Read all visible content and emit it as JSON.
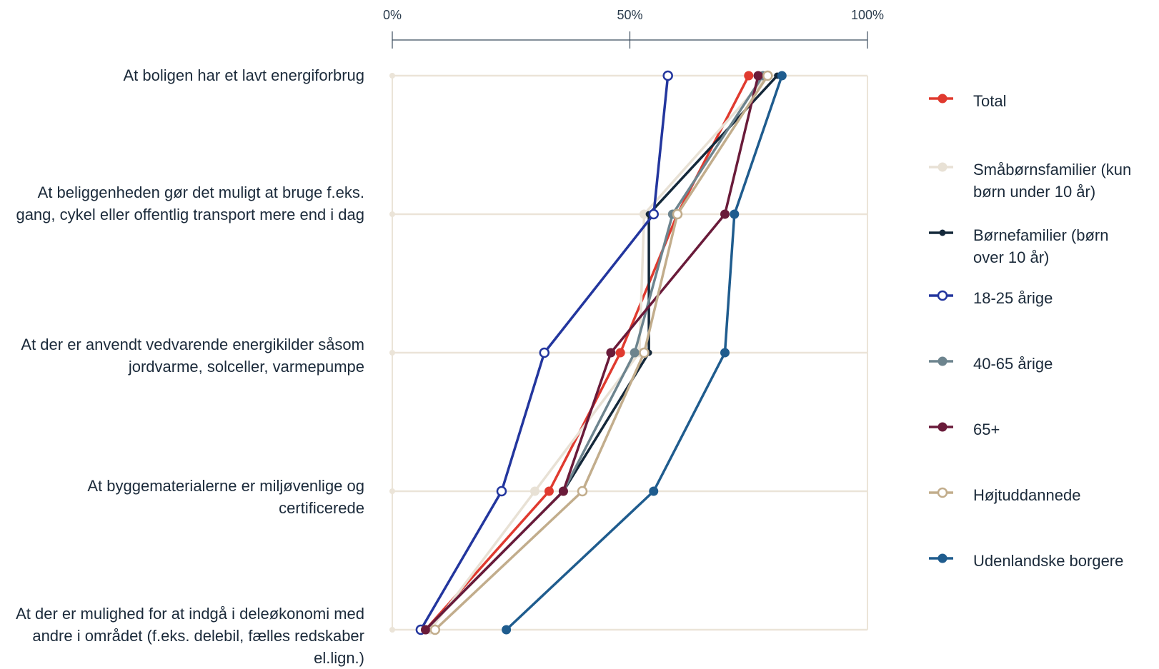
{
  "chart_data": {
    "type": "line",
    "orientation": "horizontal",
    "x_ticks": [
      "0%",
      "50%",
      "100%"
    ],
    "xlim": [
      0,
      100
    ],
    "grid": true,
    "legend_placement": "right",
    "categories": [
      "At boligen har et lavt energiforbrug",
      "At beliggenheden gør det muligt at bruge f.eks. gang, cykel eller offentlig transport mere end i dag",
      "At der er anvendt vedvarende energikilder såsom jordvarme, solceller, varmepumpe",
      "At byggematerialerne er miljøvenlige og certificerede",
      "At der er mulighed for at indgå i deleøkonomi med andre i området (f.eks. delebil, fælles redskaber el.lign.)"
    ],
    "series": [
      {
        "name": "Total",
        "color": "#e03a2f",
        "marker": "filled",
        "values": [
          75,
          60,
          48,
          33,
          7
        ]
      },
      {
        "name": "Småbørnsfamilier (kun børn under 10 år)",
        "color": "#e8e1d5",
        "marker": "filled",
        "values": [
          79,
          53,
          52,
          30,
          8
        ]
      },
      {
        "name": "Børnefamilier (børn over 10 år)",
        "color": "#14283a",
        "marker": "filled-small",
        "values": [
          81,
          54,
          54,
          36,
          7
        ]
      },
      {
        "name": "18-25 årige",
        "color": "#23369e",
        "marker": "open",
        "values": [
          58,
          55,
          32,
          23,
          6
        ]
      },
      {
        "name": "40-65 årige",
        "color": "#6d848e",
        "marker": "filled",
        "values": [
          78,
          59,
          51,
          36,
          7
        ]
      },
      {
        "name": "65+",
        "color": "#6a1b3a",
        "marker": "filled",
        "values": [
          77,
          70,
          46,
          36,
          7
        ]
      },
      {
        "name": "Højtuddannede",
        "color": "#c2ad8c",
        "marker": "open",
        "values": [
          79,
          60,
          53,
          40,
          9
        ]
      },
      {
        "name": "Udenlandske borgere",
        "color": "#1f5c8e",
        "marker": "filled",
        "values": [
          82,
          72,
          70,
          55,
          24
        ]
      }
    ]
  },
  "legend_items": [
    "Total",
    "Småbørnsfamilier (kun børn under 10 år)",
    "Børnefamilier (børn over 10 år)",
    "18-25 årige",
    "40-65 årige",
    "65+",
    "Højtuddannede",
    "Udenlandske borgere"
  ]
}
